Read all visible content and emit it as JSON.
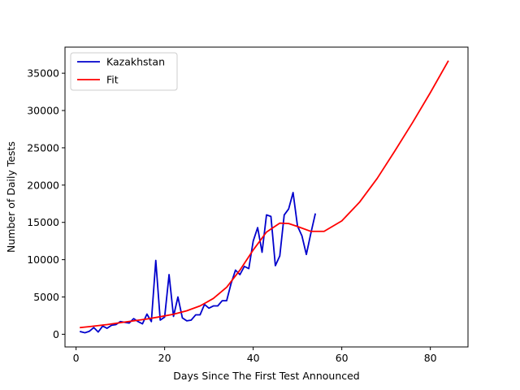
{
  "chart_data": {
    "type": "line",
    "title": "",
    "xlabel": "Days Since The First Test Announced",
    "ylabel": "Number of Daily Tests",
    "xlim": [
      -2.5,
      88.5
    ],
    "ylim": [
      -1700,
      38500
    ],
    "xticks": [
      0,
      20,
      40,
      60,
      80
    ],
    "yticks": [
      0,
      5000,
      10000,
      15000,
      20000,
      25000,
      30000,
      35000
    ],
    "grid": false,
    "legend": "upper-left",
    "series": [
      {
        "name": "Kazakhstan",
        "color": "#0000cc",
        "x": [
          1,
          2,
          3,
          4,
          5,
          6,
          7,
          8,
          9,
          10,
          11,
          12,
          13,
          14,
          15,
          16,
          17,
          18,
          19,
          20,
          21,
          22,
          23,
          24,
          25,
          26,
          27,
          28,
          29,
          30,
          31,
          32,
          33,
          34,
          35,
          36,
          37,
          38,
          39,
          40,
          41,
          42,
          43,
          44,
          45,
          46,
          47,
          48,
          49,
          50,
          51,
          52,
          53,
          54
        ],
        "y": [
          350,
          200,
          400,
          900,
          300,
          1100,
          800,
          1200,
          1300,
          1700,
          1600,
          1500,
          2100,
          1700,
          1400,
          2700,
          1700,
          9900,
          1900,
          2300,
          8000,
          2400,
          5000,
          2200,
          1800,
          1900,
          2600,
          2600,
          4000,
          3500,
          3800,
          3800,
          4500,
          4500,
          6800,
          8600,
          8000,
          9100,
          8800,
          12500,
          14300,
          11000,
          16000,
          15800,
          9200,
          10500,
          16000,
          16800,
          19000,
          14500,
          13200,
          10700,
          13500,
          16100
        ]
      },
      {
        "name": "Fit",
        "color": "#ff0000",
        "x": [
          1,
          3,
          5,
          7,
          10,
          13,
          16,
          19,
          22,
          25,
          28,
          31,
          34,
          37,
          40,
          43,
          46,
          48,
          50,
          53,
          56,
          60,
          64,
          68,
          72,
          76,
          80,
          84
        ],
        "y": [
          900,
          1020,
          1160,
          1300,
          1560,
          1800,
          2050,
          2350,
          2680,
          3150,
          3800,
          4800,
          6300,
          8600,
          11300,
          13700,
          14900,
          14850,
          14450,
          13800,
          13800,
          15200,
          17700,
          20900,
          24600,
          28400,
          32400,
          36600
        ]
      }
    ]
  }
}
